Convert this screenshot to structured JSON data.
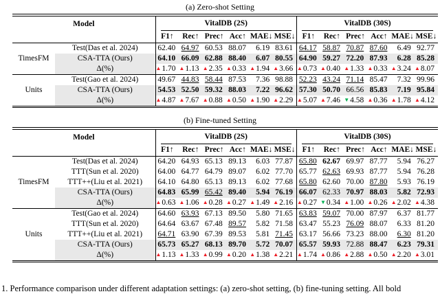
{
  "icons": {
    "up": "▲",
    "down": "▼"
  },
  "colors": {
    "positive_delta": "#ed1c24",
    "negative_delta": "#00b050",
    "highlight_row": "#e8e8e8"
  },
  "captions": {
    "table_a": "(a) Zero-shot Setting",
    "table_b": "(b) Fine-tuned Setting",
    "figure": "1. Performance comparison under different adaptation settings: (a) zero-shot setting, (b) fine-tuning setting. All bold"
  },
  "columns": {
    "model": "Model",
    "group1": "VitalDB (2S)",
    "group2": "VitalDB (30S)",
    "metrics": [
      "F1↑",
      "Rec↑",
      "Prec↑",
      "Acc↑",
      "MAE↓",
      "MSE↓"
    ]
  },
  "table_a": {
    "groups": [
      {
        "name": "TimesFM",
        "rows": [
          {
            "label": "Test(Das et al. 2024)",
            "cells": [
              {
                "v": "62.40"
              },
              {
                "v": "64.97",
                "s": "u"
              },
              {
                "v": "60.53"
              },
              {
                "v": "88.07"
              },
              {
                "v": "6.19"
              },
              {
                "v": "83.61"
              },
              {
                "v": "64.17",
                "s": "u"
              },
              {
                "v": "58.87",
                "s": "u"
              },
              {
                "v": "70.87",
                "s": "u"
              },
              {
                "v": "87.60",
                "s": "u"
              },
              {
                "v": "6.49"
              },
              {
                "v": "92.77"
              }
            ]
          },
          {
            "label": "CSA-TTA (Ours)",
            "ours": true,
            "cells": [
              {
                "v": "64.10",
                "s": "b"
              },
              {
                "v": "66.09",
                "s": "b"
              },
              {
                "v": "62.88",
                "s": "b"
              },
              {
                "v": "88.40",
                "s": "b"
              },
              {
                "v": "6.07",
                "s": "b"
              },
              {
                "v": "80.55",
                "s": "b"
              },
              {
                "v": "64.90",
                "s": "b"
              },
              {
                "v": "59.27",
                "s": "b"
              },
              {
                "v": "72.20",
                "s": "b"
              },
              {
                "v": "87.93",
                "s": "b"
              },
              {
                "v": "6.28",
                "s": "b"
              },
              {
                "v": "85.28",
                "s": "b"
              }
            ]
          },
          {
            "label": "Δ(%)",
            "delta": true,
            "cells": [
              {
                "v": "1.70",
                "d": "up"
              },
              {
                "v": "1.13",
                "d": "up"
              },
              {
                "v": "2.35",
                "d": "up"
              },
              {
                "v": "0.33",
                "d": "up"
              },
              {
                "v": "1.94",
                "d": "up"
              },
              {
                "v": "3.66",
                "d": "up"
              },
              {
                "v": "0.73",
                "d": "up"
              },
              {
                "v": "0.40",
                "d": "up"
              },
              {
                "v": "1.33",
                "d": "up"
              },
              {
                "v": "0.33",
                "d": "up"
              },
              {
                "v": "3.24",
                "d": "up"
              },
              {
                "v": "8.07",
                "d": "up"
              }
            ]
          }
        ]
      },
      {
        "name": "Units",
        "rows": [
          {
            "label": "Test(Gao et al. 2024)",
            "cells": [
              {
                "v": "49.67"
              },
              {
                "v": "44.83",
                "s": "u"
              },
              {
                "v": "58.44",
                "s": "u"
              },
              {
                "v": "87.53"
              },
              {
                "v": "7.36"
              },
              {
                "v": "98.88"
              },
              {
                "v": "52.23",
                "s": "u"
              },
              {
                "v": "43.24",
                "s": "u"
              },
              {
                "v": "71.14",
                "s": "u"
              },
              {
                "v": "85.47"
              },
              {
                "v": "7.32"
              },
              {
                "v": "99.96"
              }
            ]
          },
          {
            "label": "CSA-TTA (Ours)",
            "ours": true,
            "cells": [
              {
                "v": "54.53",
                "s": "b"
              },
              {
                "v": "52.50",
                "s": "b"
              },
              {
                "v": "59.32",
                "s": "b"
              },
              {
                "v": "88.03",
                "s": "b"
              },
              {
                "v": "7.22",
                "s": "b"
              },
              {
                "v": "96.62",
                "s": "b"
              },
              {
                "v": "57.30",
                "s": "b"
              },
              {
                "v": "50.70",
                "s": "b"
              },
              {
                "v": "66.56"
              },
              {
                "v": "85.83",
                "s": "b"
              },
              {
                "v": "7.19",
                "s": "b"
              },
              {
                "v": "95.84",
                "s": "b"
              }
            ]
          },
          {
            "label": "Δ(%)",
            "delta": true,
            "cells": [
              {
                "v": "4.87",
                "d": "up"
              },
              {
                "v": "7.67",
                "d": "up"
              },
              {
                "v": "0.88",
                "d": "up"
              },
              {
                "v": "0.50",
                "d": "up"
              },
              {
                "v": "1.90",
                "d": "up"
              },
              {
                "v": "2.29",
                "d": "up"
              },
              {
                "v": "5.07",
                "d": "up"
              },
              {
                "v": "7.46",
                "d": "up"
              },
              {
                "v": "4.58",
                "d": "down"
              },
              {
                "v": "0.36",
                "d": "up"
              },
              {
                "v": "1.78",
                "d": "up"
              },
              {
                "v": "4.12",
                "d": "up"
              }
            ]
          }
        ]
      }
    ]
  },
  "table_b": {
    "groups": [
      {
        "name": "TimesFM",
        "rows": [
          {
            "label": "Test(Das et al. 2024)",
            "cells": [
              {
                "v": "64.20"
              },
              {
                "v": "64.93"
              },
              {
                "v": "65.13"
              },
              {
                "v": "89.13"
              },
              {
                "v": "6.03"
              },
              {
                "v": "77.87"
              },
              {
                "v": "65.80",
                "s": "u"
              },
              {
                "v": "62.67",
                "s": "b"
              },
              {
                "v": "69.97"
              },
              {
                "v": "87.77"
              },
              {
                "v": "5.94"
              },
              {
                "v": "76.27"
              }
            ]
          },
          {
            "label": "TTT(Sun et al. 2020)",
            "cells": [
              {
                "v": "64.00"
              },
              {
                "v": "64.77"
              },
              {
                "v": "64.79"
              },
              {
                "v": "89.07"
              },
              {
                "v": "6.02"
              },
              {
                "v": "77.70"
              },
              {
                "v": "65.77"
              },
              {
                "v": "62.63",
                "s": "u"
              },
              {
                "v": "69.93"
              },
              {
                "v": "87.77"
              },
              {
                "v": "5.94"
              },
              {
                "v": "76.28"
              }
            ]
          },
          {
            "label": "TTT++(Liu et al. 2021)",
            "cells": [
              {
                "v": "64.10"
              },
              {
                "v": "64.80"
              },
              {
                "v": "65.13"
              },
              {
                "v": "89.13"
              },
              {
                "v": "6.02"
              },
              {
                "v": "77.68"
              },
              {
                "v": "65.80",
                "s": "u"
              },
              {
                "v": "62.60"
              },
              {
                "v": "70.00"
              },
              {
                "v": "87.80",
                "s": "u"
              },
              {
                "v": "5.93"
              },
              {
                "v": "76.19"
              }
            ]
          },
          {
            "label": "CSA-TTA (Ours)",
            "ours": true,
            "cells": [
              {
                "v": "64.83",
                "s": "b"
              },
              {
                "v": "65.99",
                "s": "b"
              },
              {
                "v": "65.42",
                "s": "u"
              },
              {
                "v": "89.40",
                "s": "b"
              },
              {
                "v": "5.94",
                "s": "b"
              },
              {
                "v": "76.19",
                "s": "b"
              },
              {
                "v": "66.07",
                "s": "b"
              },
              {
                "v": "62.33"
              },
              {
                "v": "70.97",
                "s": "b"
              },
              {
                "v": "88.03",
                "s": "b"
              },
              {
                "v": "5.82",
                "s": "b"
              },
              {
                "v": "72.93",
                "s": "b"
              }
            ]
          },
          {
            "label": "Δ(%)",
            "delta": true,
            "cells": [
              {
                "v": "0.63",
                "d": "up"
              },
              {
                "v": "1.06",
                "d": "up"
              },
              {
                "v": "0.28",
                "d": "up"
              },
              {
                "v": "0.27",
                "d": "up"
              },
              {
                "v": "1.49",
                "d": "up"
              },
              {
                "v": "2.16",
                "d": "up"
              },
              {
                "v": "0.27",
                "d": "up"
              },
              {
                "v": "0.34",
                "d": "down"
              },
              {
                "v": "1.00",
                "d": "up"
              },
              {
                "v": "0.26",
                "d": "up"
              },
              {
                "v": "2.02",
                "d": "up"
              },
              {
                "v": "4.38",
                "d": "up"
              }
            ]
          }
        ]
      },
      {
        "name": "Units",
        "rows": [
          {
            "label": "Test(Gao et al. 2024)",
            "cells": [
              {
                "v": "64.60"
              },
              {
                "v": "63.93",
                "s": "u"
              },
              {
                "v": "67.13"
              },
              {
                "v": "89.50"
              },
              {
                "v": "5.80"
              },
              {
                "v": "71.65"
              },
              {
                "v": "63.83",
                "s": "u"
              },
              {
                "v": "59.07",
                "s": "u"
              },
              {
                "v": "70.00"
              },
              {
                "v": "87.97"
              },
              {
                "v": "6.37"
              },
              {
                "v": "81.77"
              }
            ]
          },
          {
            "label": "TTT(Sun et al. 2020)",
            "cells": [
              {
                "v": "64.64"
              },
              {
                "v": "63.67"
              },
              {
                "v": "67.48"
              },
              {
                "v": "89.57",
                "s": "u"
              },
              {
                "v": "5.82"
              },
              {
                "v": "71.58"
              },
              {
                "v": "63.47"
              },
              {
                "v": "55.23"
              },
              {
                "v": "76.09",
                "s": "u"
              },
              {
                "v": "88.07"
              },
              {
                "v": "6.33"
              },
              {
                "v": "81.20"
              }
            ]
          },
          {
            "label": "TTT++(Liu et al. 2021)",
            "cells": [
              {
                "v": "64.71",
                "s": "u"
              },
              {
                "v": "63.90"
              },
              {
                "v": "67.39"
              },
              {
                "v": "89.53"
              },
              {
                "v": "5.81"
              },
              {
                "v": "71.45",
                "s": "u"
              },
              {
                "v": "63.17"
              },
              {
                "v": "56.66"
              },
              {
                "v": "73.23"
              },
              {
                "v": "88.00"
              },
              {
                "v": "6.30",
                "s": "u"
              },
              {
                "v": "81.20"
              }
            ]
          },
          {
            "label": "CSA-TTA (Ours)",
            "ours": true,
            "cells": [
              {
                "v": "65.73",
                "s": "b"
              },
              {
                "v": "65.27",
                "s": "b"
              },
              {
                "v": "68.13",
                "s": "b"
              },
              {
                "v": "89.70",
                "s": "b"
              },
              {
                "v": "5.72",
                "s": "b"
              },
              {
                "v": "70.07",
                "s": "b"
              },
              {
                "v": "65.57",
                "s": "b"
              },
              {
                "v": "59.93",
                "s": "b"
              },
              {
                "v": "72.88"
              },
              {
                "v": "88.47",
                "s": "b"
              },
              {
                "v": "6.23",
                "s": "b"
              },
              {
                "v": "79.31",
                "s": "b"
              }
            ]
          },
          {
            "label": "Δ(%)",
            "delta": true,
            "cells": [
              {
                "v": "1.13",
                "d": "up"
              },
              {
                "v": "1.33",
                "d": "up"
              },
              {
                "v": "0.99",
                "d": "up"
              },
              {
                "v": "0.20",
                "d": "up"
              },
              {
                "v": "1.38",
                "d": "up"
              },
              {
                "v": "2.21",
                "d": "up"
              },
              {
                "v": "1.74",
                "d": "up"
              },
              {
                "v": "0.86",
                "d": "up"
              },
              {
                "v": "2.88",
                "d": "up"
              },
              {
                "v": "0.50",
                "d": "up"
              },
              {
                "v": "2.20",
                "d": "up"
              },
              {
                "v": "3.01",
                "d": "up"
              }
            ]
          }
        ]
      }
    ]
  }
}
